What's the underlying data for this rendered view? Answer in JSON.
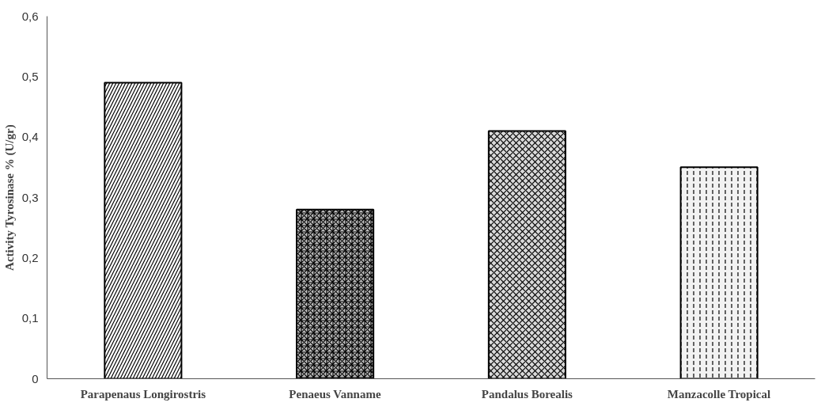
{
  "chart_data": {
    "type": "bar",
    "ylabel": "Activity Tyrosinase % (U/gr)",
    "categories": [
      "Parapenaus Longirostris",
      "Penaeus Vanname",
      "Pandalus Borealis",
      "Manzacolle Tropical"
    ],
    "values": [
      0.49,
      0.28,
      0.41,
      0.35
    ],
    "colors": [
      "#ffffff",
      "#bfbfbf",
      "#d9d9d9",
      "#f2f2f2"
    ],
    "ylim": [
      0,
      0.6
    ],
    "yticks": [
      {
        "value": 0,
        "label": "0"
      },
      {
        "value": 0.1,
        "label": "0,1"
      },
      {
        "value": 0.2,
        "label": "0,2"
      },
      {
        "value": 0.3,
        "label": "0,3"
      },
      {
        "value": 0.4,
        "label": "0,4"
      },
      {
        "value": 0.5,
        "label": "0,5"
      },
      {
        "value": 0.6,
        "label": "0,6"
      }
    ],
    "grid": false
  }
}
